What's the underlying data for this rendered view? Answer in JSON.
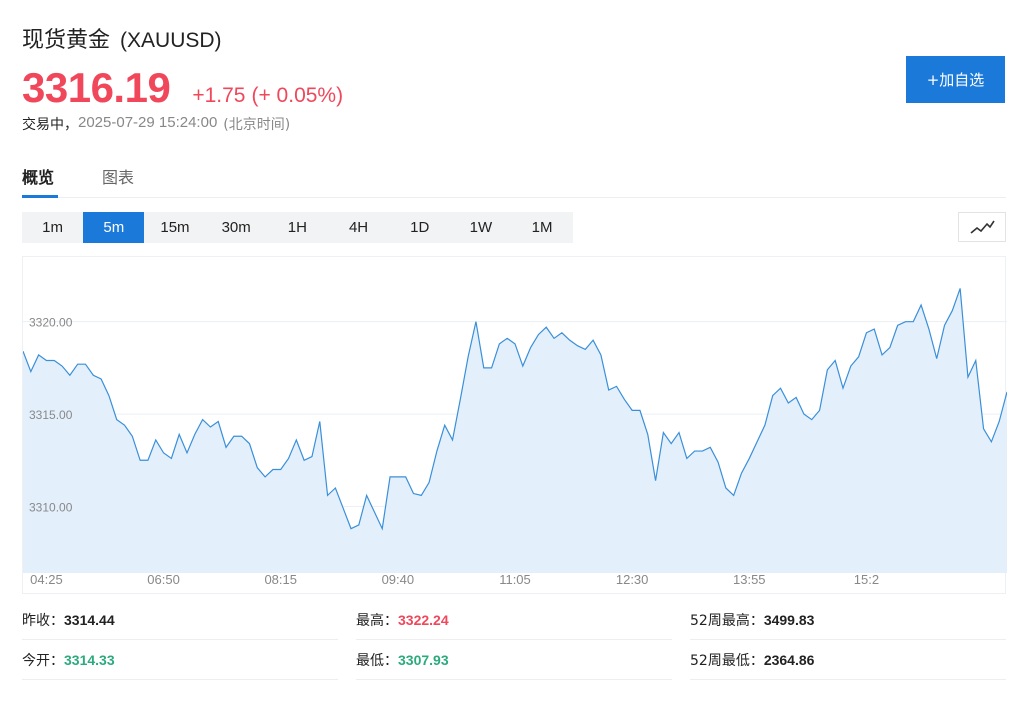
{
  "instrument": {
    "name": "现货黄金",
    "symbol": "(XAUUSD)"
  },
  "quote": {
    "price": "3316.19",
    "change": "+1.75",
    "change_pct": "(+ 0.05%)",
    "status": "交易中，",
    "time": "2025-07-29 15:24:00",
    "timezone": "(北京时间)",
    "up_color": "#f0475b"
  },
  "actions": {
    "watchlist": "+加自选"
  },
  "tabs": [
    {
      "label": "概览",
      "active": true
    },
    {
      "label": "图表",
      "active": false
    }
  ],
  "periods": [
    "1m",
    "5m",
    "15m",
    "30m",
    "1H",
    "4H",
    "1D",
    "1W",
    "1M"
  ],
  "active_period": "5m",
  "chart_data": {
    "type": "area",
    "ylim": [
      3306.4,
      3323.5
    ],
    "y_ticks": [
      3310.0,
      3315.0,
      3320.0
    ],
    "y_tick_labels": [
      "3310.00",
      "3315.00",
      "3320.00"
    ],
    "x_tick_labels": [
      "04:25",
      "06:50",
      "08:15",
      "09:40",
      "11:05",
      "12:30",
      "13:55",
      "15:2"
    ],
    "x_tick_index": [
      3,
      18,
      33,
      48,
      63,
      78,
      93,
      108
    ],
    "values": [
      3318.4,
      3317.3,
      3318.2,
      3317.9,
      3317.9,
      3317.6,
      3317.1,
      3317.7,
      3317.7,
      3317.1,
      3316.9,
      3316.0,
      3314.7,
      3314.4,
      3313.8,
      3312.5,
      3312.5,
      3313.6,
      3312.9,
      3312.6,
      3313.9,
      3312.9,
      3313.9,
      3314.7,
      3314.3,
      3314.6,
      3313.2,
      3313.8,
      3313.8,
      3313.4,
      3312.1,
      3311.6,
      3312.0,
      3312.0,
      3312.6,
      3313.6,
      3312.5,
      3312.7,
      3314.6,
      3310.6,
      3311.0,
      3309.9,
      3308.8,
      3309.0,
      3310.6,
      3309.7,
      3308.8,
      3311.6,
      3311.6,
      3311.6,
      3310.7,
      3310.6,
      3311.3,
      3313.0,
      3314.4,
      3313.6,
      3315.8,
      3318.1,
      3320.0,
      3317.5,
      3317.5,
      3318.8,
      3319.1,
      3318.8,
      3317.6,
      3318.6,
      3319.3,
      3319.7,
      3319.1,
      3319.4,
      3319.0,
      3318.7,
      3318.5,
      3319.0,
      3318.2,
      3316.3,
      3316.5,
      3315.8,
      3315.2,
      3315.2,
      3313.9,
      3311.4,
      3314.0,
      3313.4,
      3314.0,
      3312.6,
      3313.0,
      3313.0,
      3313.2,
      3312.4,
      3311.0,
      3310.6,
      3311.8,
      3312.6,
      3313.5,
      3314.4,
      3316.0,
      3316.4,
      3315.6,
      3315.9,
      3315.0,
      3314.7,
      3315.2,
      3317.4,
      3317.9,
      3316.4,
      3317.6,
      3318.1,
      3319.4,
      3319.6,
      3318.2,
      3318.6,
      3319.8,
      3320.0,
      3320.0,
      3320.9,
      3319.6,
      3318.0,
      3319.8,
      3320.6,
      3321.8,
      3317.0,
      3317.9,
      3314.2,
      3313.5,
      3314.6,
      3316.2
    ],
    "line_color": "#3a8fd9",
    "fill_color": "#e3f0fc"
  },
  "stats": [
    {
      "label": "昨收：",
      "value": "3314.44",
      "tone": "neutral"
    },
    {
      "label": "最高：",
      "value": "3322.24",
      "tone": "up"
    },
    {
      "label": "52周最高：",
      "value": "3499.83",
      "tone": "neutral"
    },
    {
      "label": "今开：",
      "value": "3314.33",
      "tone": "down"
    },
    {
      "label": "最低：",
      "value": "3307.93",
      "tone": "down"
    },
    {
      "label": "52周最低：",
      "value": "2364.86",
      "tone": "neutral"
    }
  ]
}
